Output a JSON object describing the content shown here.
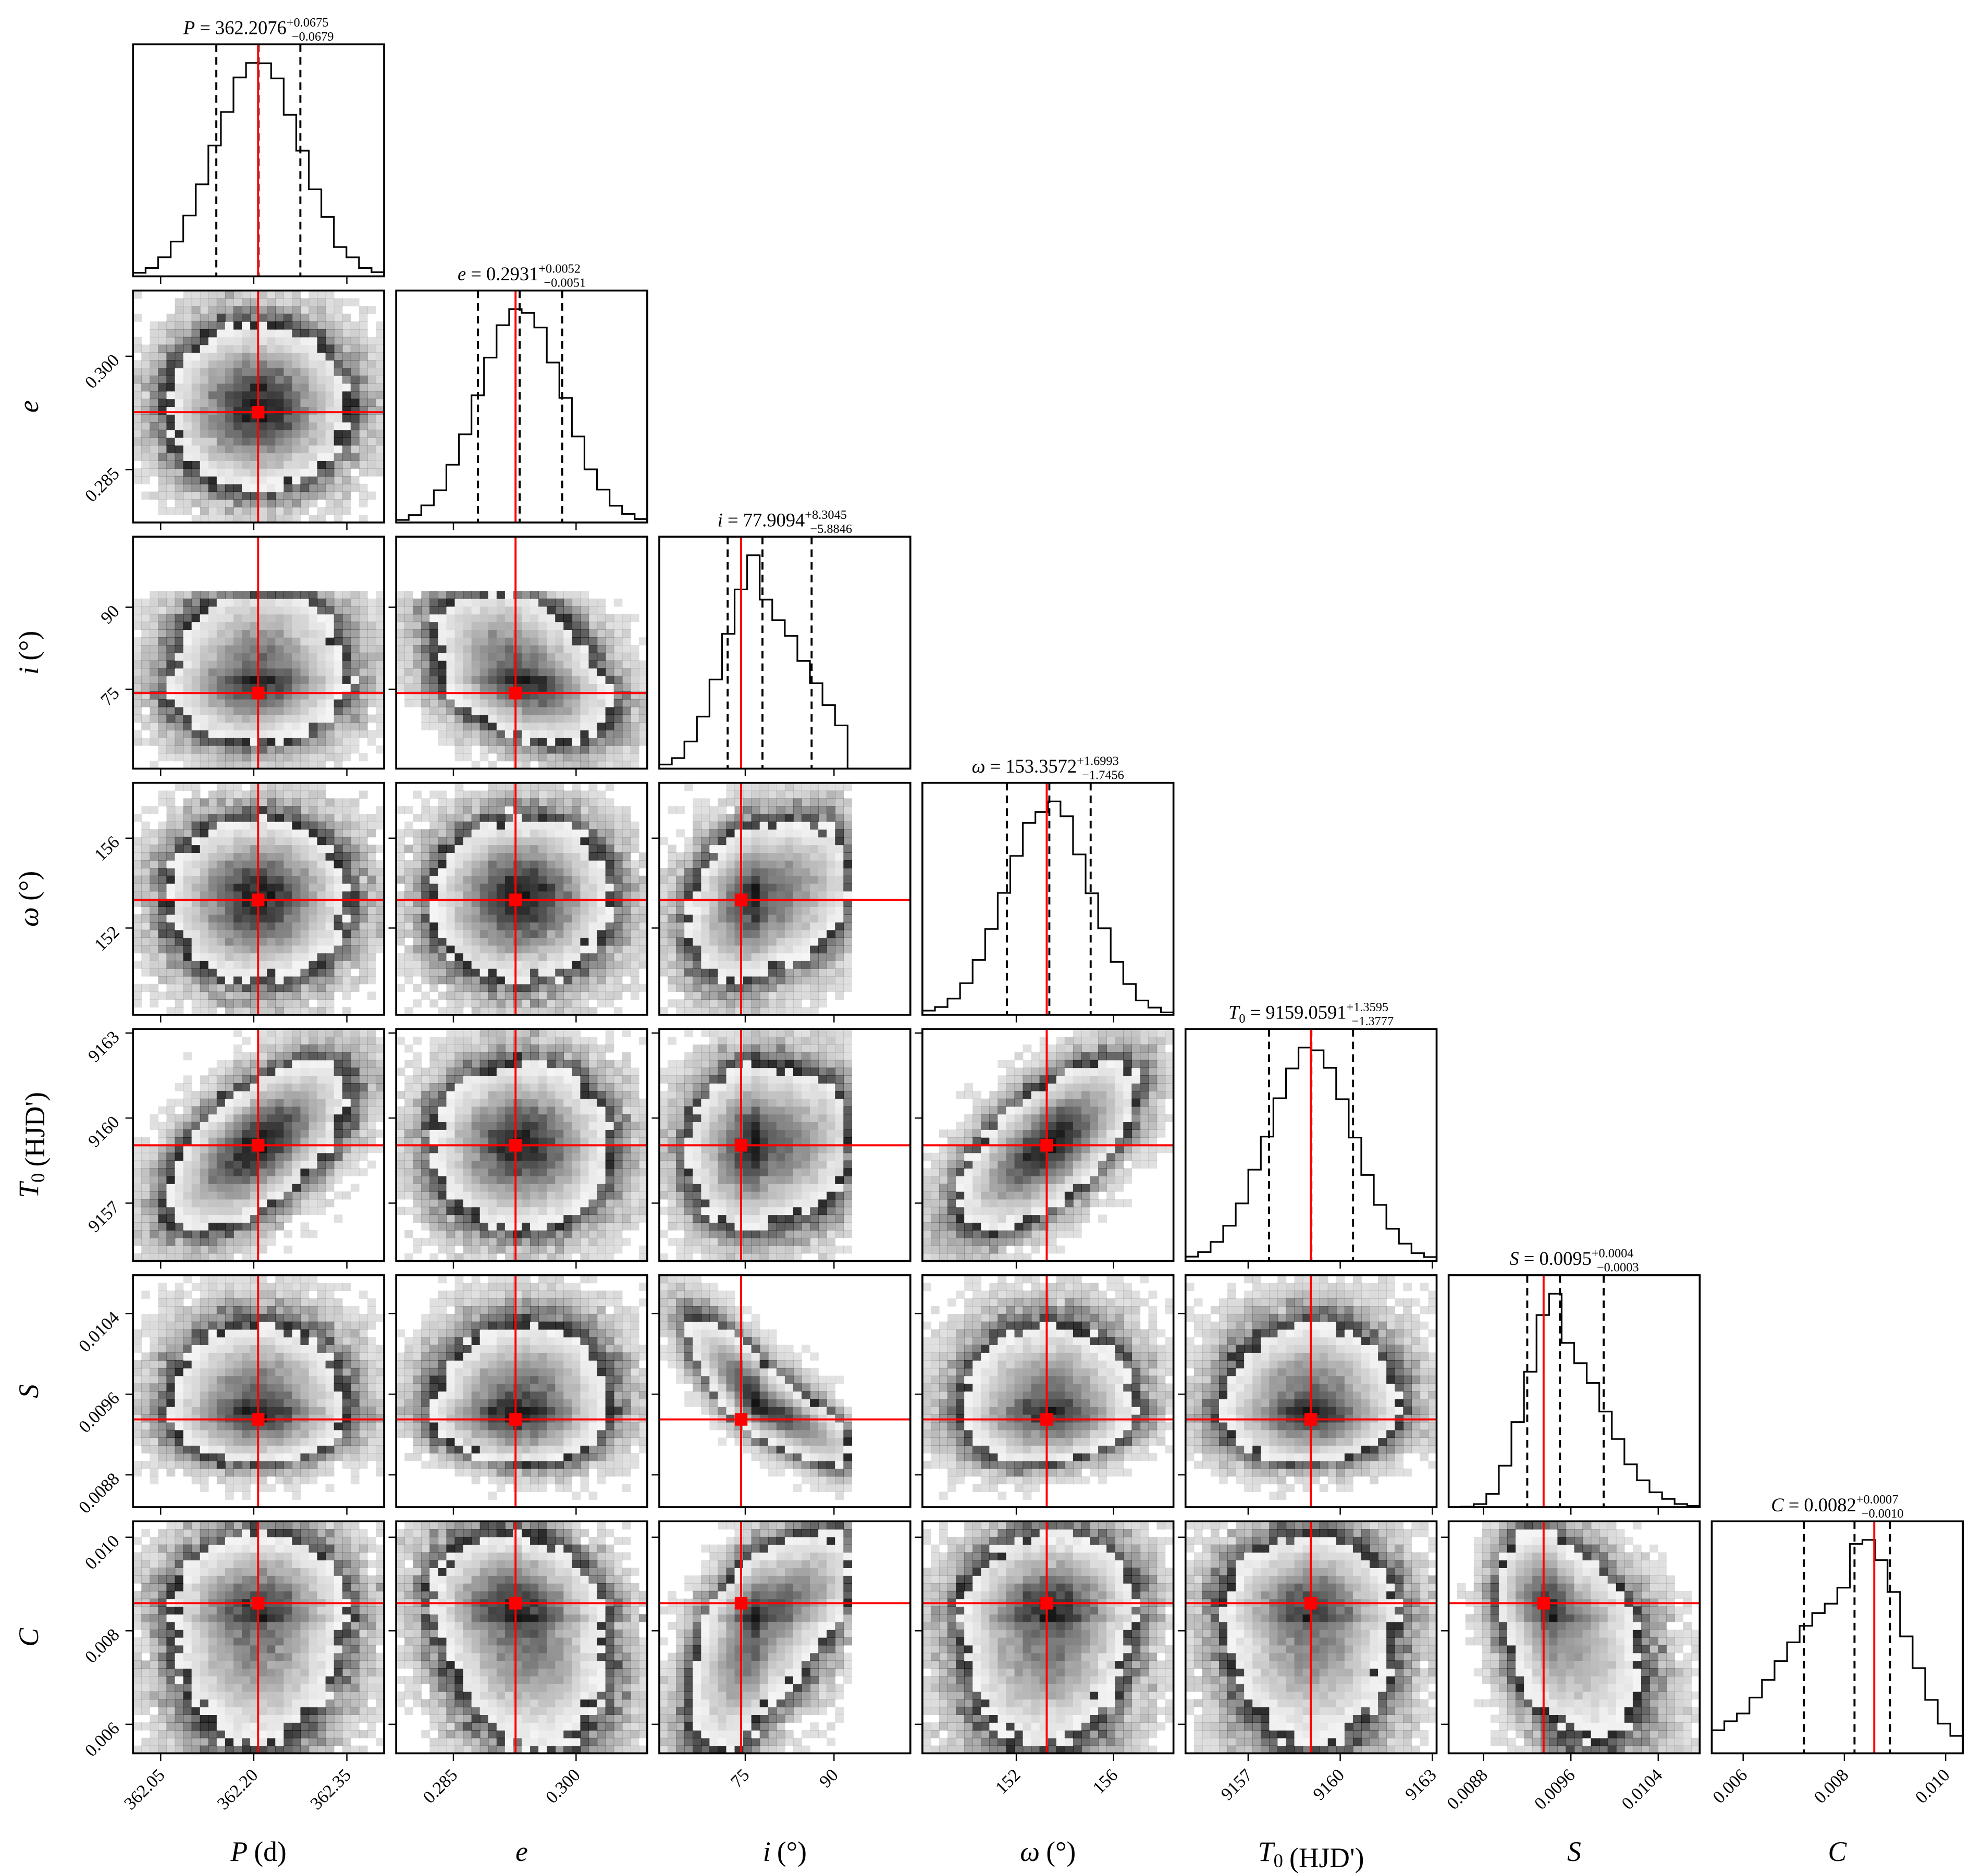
{
  "chart_data": {
    "type": "corner",
    "colors": {
      "truth": "#ff0000",
      "histogram": "#000000",
      "quantile": "#000000",
      "density": "#000000"
    },
    "quantile_lines": "dashed",
    "parameters": [
      {
        "symbol": "P",
        "subscript": "",
        "unit": "(d)",
        "median": 362.2076,
        "plus": 0.0675,
        "minus": 0.0679,
        "median_text": "362.2076",
        "plus_text": "+0.0675",
        "minus_text": "−0.0679",
        "truth": 362.207,
        "range": [
          362.0055,
          362.41
        ],
        "ticks": [
          362.05,
          362.2,
          362.35
        ],
        "tick_labels": [
          "362.05",
          "362.20",
          "362.35"
        ]
      },
      {
        "symbol": "e",
        "subscript": "",
        "unit": "",
        "median": 0.2931,
        "plus": 0.0052,
        "minus": 0.0051,
        "median_text": "0.2931",
        "plus_text": "+0.0052",
        "minus_text": "−0.0051",
        "truth": 0.2926,
        "range": [
          0.278,
          0.3087
        ],
        "ticks": [
          0.285,
          0.3
        ],
        "tick_labels": [
          "0.285",
          "0.300"
        ]
      },
      {
        "symbol": "i",
        "subscript": "",
        "unit": "(°)",
        "median": 77.9094,
        "plus": 8.3045,
        "minus": 5.8846,
        "median_text": "77.9094",
        "plus_text": "+8.3045",
        "minus_text": "−5.8846",
        "truth": 74.3,
        "range": [
          60.47,
          102.9
        ],
        "ticks": [
          75,
          90
        ],
        "tick_labels": [
          "75",
          "90"
        ],
        "upper_bound": 92.3
      },
      {
        "symbol": "ω",
        "subscript": "",
        "unit": "(°)",
        "median": 153.3572,
        "plus": 1.6993,
        "minus": 1.7456,
        "median_text": "153.3572",
        "plus_text": "+1.6993",
        "minus_text": "−1.7456",
        "truth": 153.25,
        "range": [
          148.14,
          158.46
        ],
        "ticks": [
          152,
          156
        ],
        "tick_labels": [
          "152",
          "156"
        ]
      },
      {
        "symbol": "T",
        "subscript": "0",
        "unit": "(HJD')",
        "median": 9159.0591,
        "plus": 1.3595,
        "minus": 1.3777,
        "median_text": "9159.0591",
        "plus_text": "+1.3595",
        "minus_text": "−1.3777",
        "truth": 9159.04,
        "range": [
          9154.96,
          9163.14
        ],
        "ticks": [
          9157,
          9160,
          9163
        ],
        "tick_labels": [
          "9157",
          "9160",
          "9163"
        ]
      },
      {
        "symbol": "S",
        "subscript": "",
        "unit": "",
        "median": 0.0095,
        "plus": 0.0004,
        "minus": 0.0003,
        "median_text": "0.0095",
        "plus_text": "+0.0004",
        "minus_text": "−0.0003",
        "truth": 0.00935,
        "range": [
          0.00848,
          0.01078
        ],
        "ticks": [
          0.0088,
          0.0096,
          0.0104
        ],
        "tick_labels": [
          "0.0088",
          "0.0096",
          "0.0104"
        ]
      },
      {
        "symbol": "C",
        "subscript": "",
        "unit": "",
        "median": 0.0082,
        "plus": 0.0007,
        "minus": 0.001,
        "median_text": "0.0082",
        "plus_text": "+0.0007",
        "minus_text": "−0.0010",
        "truth": 0.00859,
        "range": [
          0.00538,
          0.01034
        ],
        "ticks": [
          0.006,
          0.008,
          0.01
        ],
        "tick_labels": [
          "0.006",
          "0.008",
          "0.010"
        ]
      }
    ],
    "correlations": [
      [
        1.0,
        0.0,
        0.05,
        0.0,
        0.6,
        0.0,
        0.05
      ],
      [
        0.0,
        1.0,
        -0.4,
        0.0,
        0.0,
        0.1,
        -0.35
      ],
      [
        0.05,
        -0.4,
        1.0,
        0.3,
        0.1,
        -0.85,
        0.85
      ],
      [
        0.0,
        0.0,
        0.3,
        1.0,
        0.65,
        0.0,
        0.15
      ],
      [
        0.6,
        0.0,
        0.1,
        0.65,
        1.0,
        0.0,
        0.0
      ],
      [
        0.0,
        0.1,
        -0.85,
        0.0,
        0.0,
        1.0,
        -0.6
      ],
      [
        0.05,
        -0.35,
        0.85,
        0.15,
        0.0,
        -0.6,
        1.0
      ]
    ]
  }
}
